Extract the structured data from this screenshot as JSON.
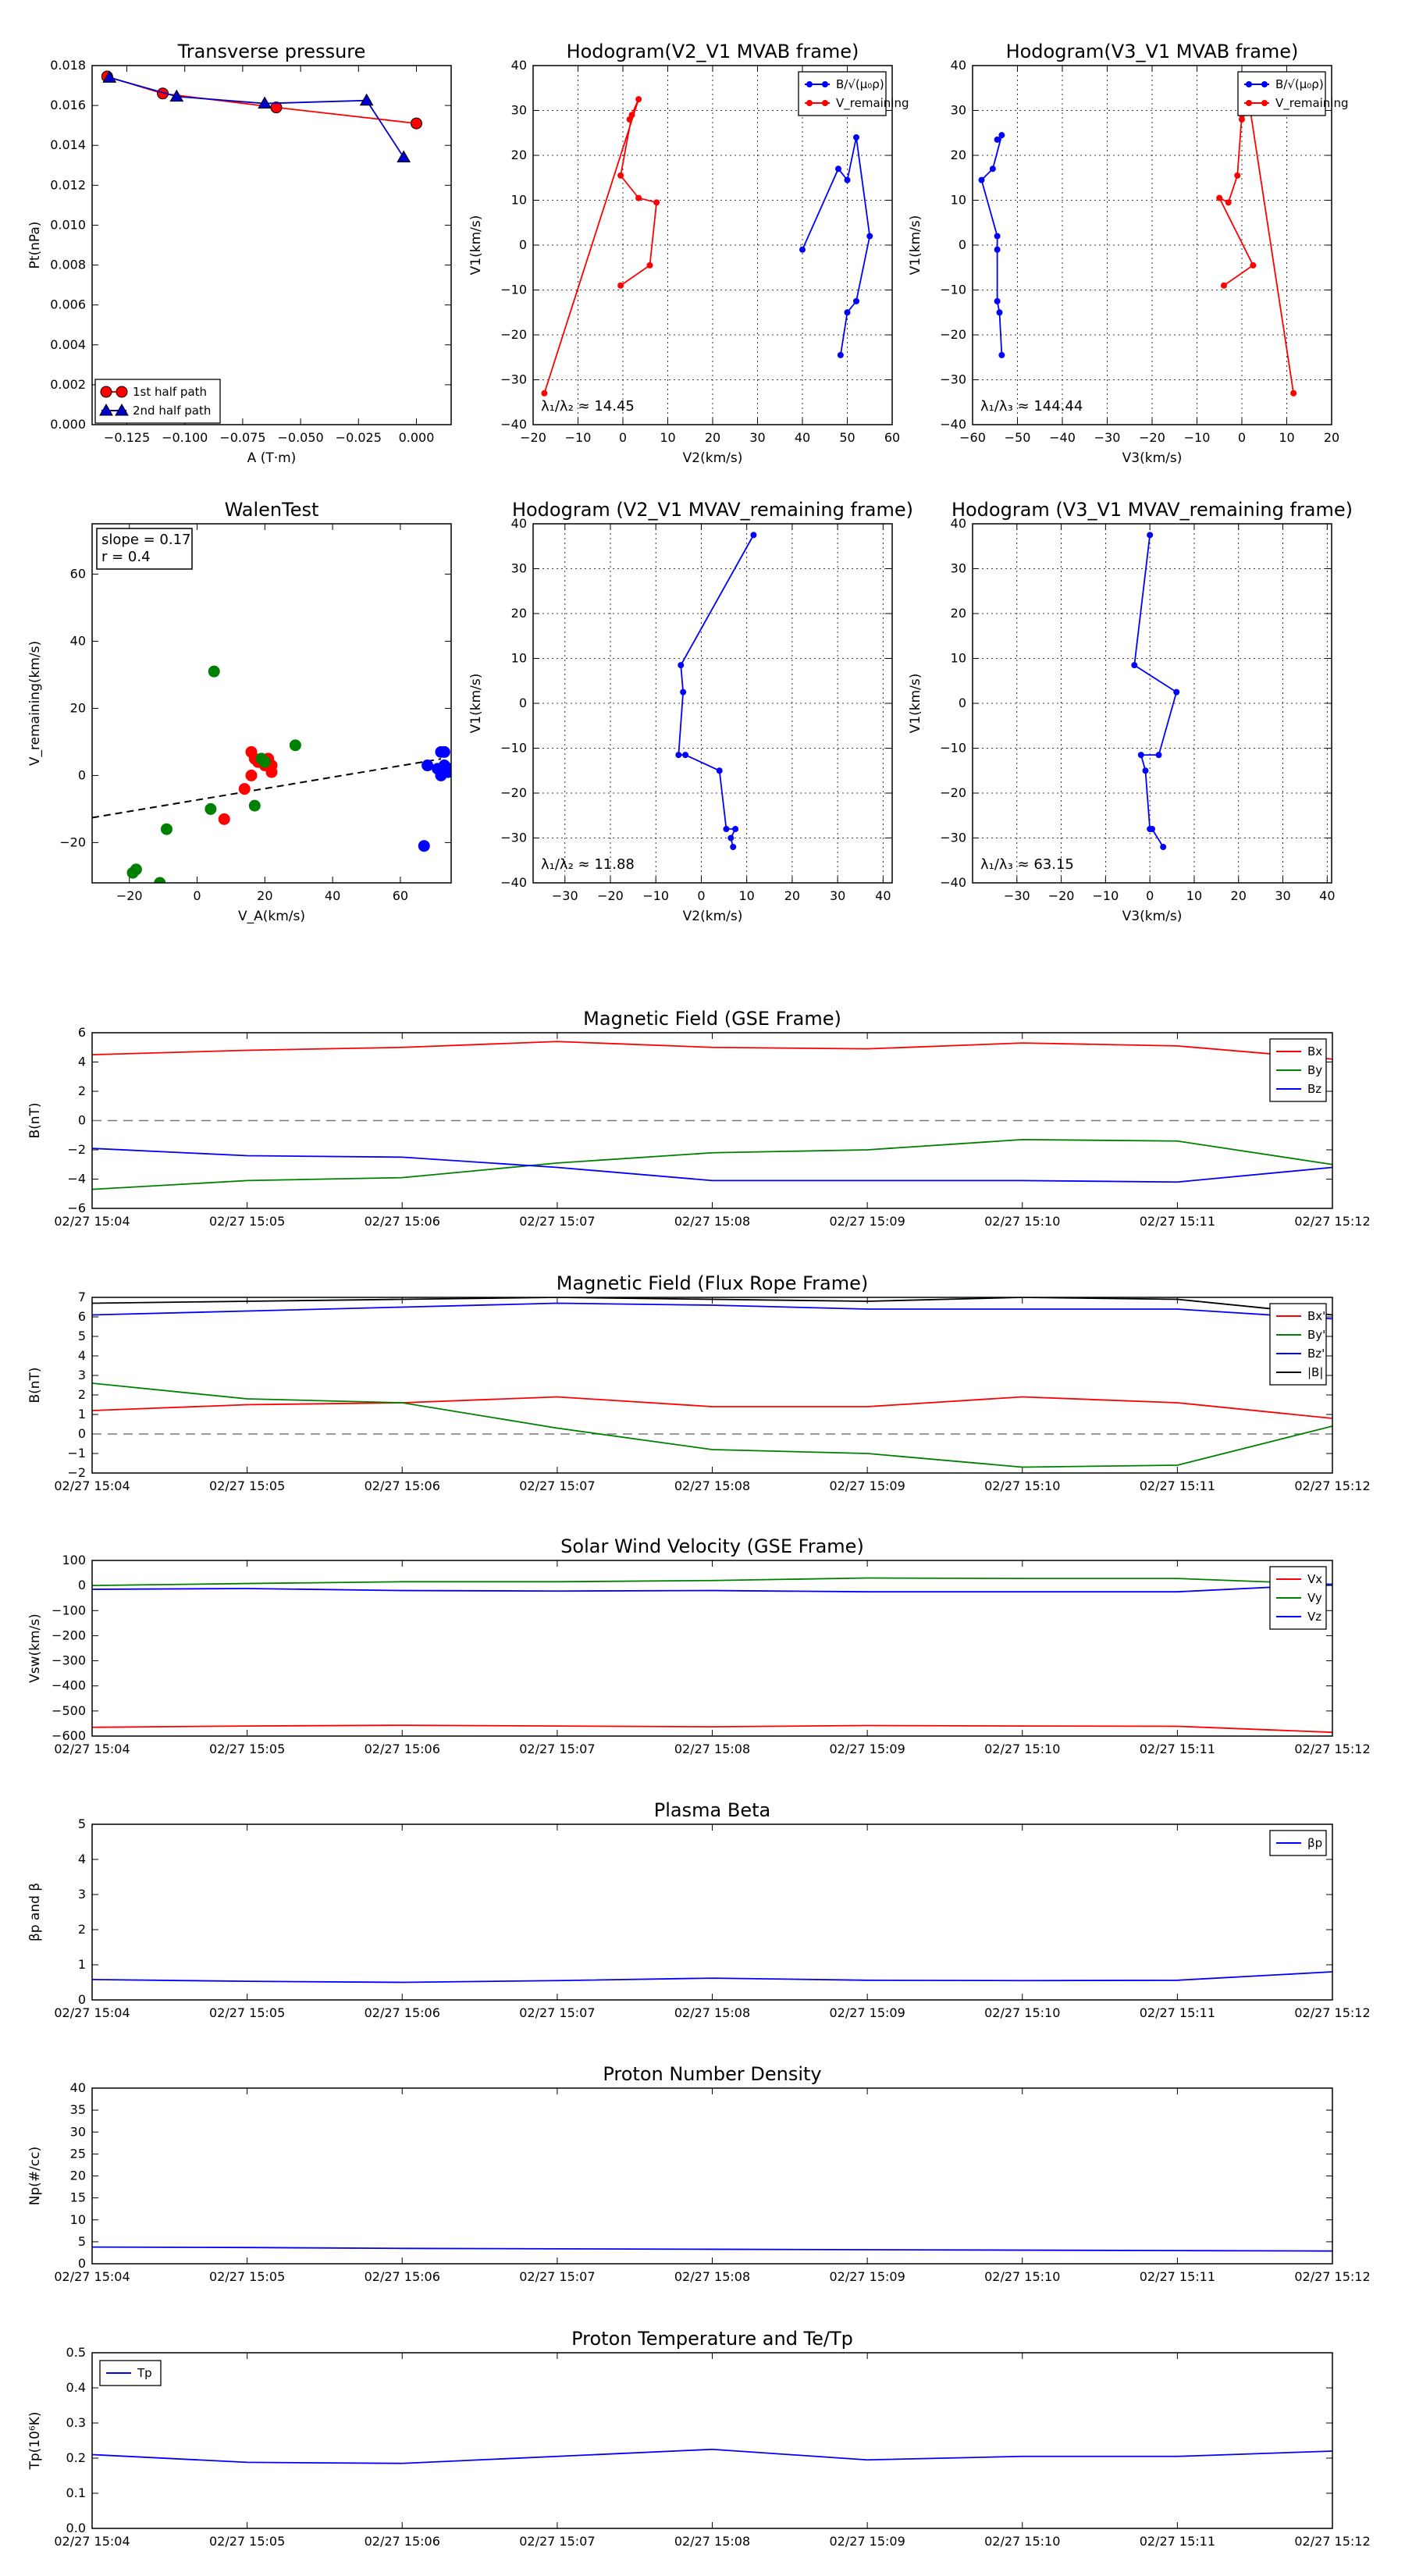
{
  "chart_data": [
    {
      "id": "transverse_pressure",
      "type": "line",
      "title": "Transverse pressure",
      "xlabel": "A (T·m)",
      "ylabel": "Pt(nPa)",
      "xlim": [
        -0.14,
        0.015
      ],
      "ylim": [
        0.0,
        0.018
      ],
      "xticks": [
        -0.125,
        -0.1,
        -0.075,
        -0.05,
        -0.025,
        0.0
      ],
      "xtick_labels": [
        "−0.125",
        "−0.100",
        "−0.075",
        "−0.050",
        "−0.025",
        "0.000"
      ],
      "yticks": [
        0,
        0.002,
        0.004,
        0.006,
        0.008,
        0.01,
        0.012,
        0.014,
        0.016,
        0.018
      ],
      "ytick_labels": [
        "0.000",
        "0.002",
        "0.004",
        "0.006",
        "0.008",
        "0.010",
        "0.012",
        "0.014",
        "0.016",
        "0.018"
      ],
      "legend": "lower-left",
      "grid": false,
      "series": [
        {
          "name": "1st half path",
          "color": "#ff0000",
          "marker": "circle",
          "x": [
            -0.1335,
            -0.1095,
            -0.0605,
            0.0
          ],
          "y": [
            0.01745,
            0.0166,
            0.0159,
            0.0151
          ]
        },
        {
          "name": "2nd half path",
          "color": "#0000cc",
          "marker": "triangle",
          "x": [
            -0.1325,
            -0.1035,
            -0.0655,
            -0.0215,
            -0.0055
          ],
          "y": [
            0.0174,
            0.01645,
            0.0161,
            0.01625,
            0.0134
          ]
        }
      ]
    },
    {
      "id": "hodogram_v2v1_mvab",
      "type": "line",
      "title": "Hodogram(V2_V1 MVAB frame)",
      "xlabel": "V2(km/s)",
      "ylabel": "V1(km/s)",
      "xlim": [
        -20,
        60
      ],
      "ylim": [
        -40,
        40
      ],
      "xticks": [
        -20,
        -10,
        0,
        10,
        20,
        30,
        40,
        50,
        60
      ],
      "xtick_labels": [
        "−20",
        "−10",
        "0",
        "10",
        "20",
        "30",
        "40",
        "50",
        "60"
      ],
      "yticks": [
        -40,
        -30,
        -20,
        -10,
        0,
        10,
        20,
        30,
        40
      ],
      "ytick_labels": [
        "−40",
        "−30",
        "−20",
        "−10",
        "0",
        "10",
        "20",
        "30",
        "40"
      ],
      "grid": true,
      "legend": "top-right",
      "annotation": "λ₁/λ₂ ≈ 14.45",
      "series": [
        {
          "name": "B/√(μ₀ρ)",
          "color": "#0000ff",
          "marker": "dot",
          "x": [
            40,
            48,
            50,
            52,
            55,
            52,
            50,
            48.5
          ],
          "y": [
            -1,
            17,
            14.5,
            24,
            2,
            -12.5,
            -15,
            -24.5
          ]
        },
        {
          "name": "V_remaining",
          "color": "#ff0000",
          "marker": "dot",
          "x": [
            -17.5,
            3.5,
            1.5,
            2,
            -0.5,
            3.5,
            7.5,
            6,
            -0.5
          ],
          "y": [
            -33,
            32.5,
            28,
            29,
            15.5,
            10.5,
            9.5,
            -4.5,
            -9
          ]
        }
      ]
    },
    {
      "id": "hodogram_v3v1_mvab",
      "type": "line",
      "title": "Hodogram(V3_V1 MVAB frame)",
      "xlabel": "V3(km/s)",
      "ylabel": "V1(km/s)",
      "xlim": [
        -60,
        20
      ],
      "ylim": [
        -40,
        40
      ],
      "xticks": [
        -60,
        -50,
        -40,
        -30,
        -20,
        -10,
        0,
        10,
        20
      ],
      "xtick_labels": [
        "−60",
        "−50",
        "−40",
        "−30",
        "−20",
        "−10",
        "0",
        "10",
        "20"
      ],
      "yticks": [
        -40,
        -30,
        -20,
        -10,
        0,
        10,
        20,
        30,
        40
      ],
      "ytick_labels": [
        "−40",
        "−30",
        "−20",
        "−10",
        "0",
        "10",
        "20",
        "30",
        "40"
      ],
      "grid": true,
      "legend": "top-right",
      "annotation": "λ₁/λ₃ ≈ 144.44",
      "series": [
        {
          "name": "B/√(μ₀ρ)",
          "color": "#0000ff",
          "marker": "dot",
          "x": [
            -54.5,
            -53.5,
            -55.5,
            -58,
            -54.5,
            -54.5,
            -54.5,
            -54,
            -53.5
          ],
          "y": [
            23.5,
            24.5,
            17,
            14.5,
            2,
            -1,
            -12.5,
            -15,
            -24.5
          ]
        },
        {
          "name": "V_remaining",
          "color": "#ff0000",
          "marker": "dot",
          "x": [
            11.5,
            1.5,
            0,
            0,
            -1,
            -3,
            -5,
            2.5,
            -4
          ],
          "y": [
            -33,
            32.5,
            28,
            29,
            15.5,
            9.5,
            10.5,
            -4.5,
            -9
          ]
        }
      ]
    },
    {
      "id": "walen_test",
      "type": "scatter",
      "title": "WalenTest",
      "xlabel": "V_A(km/s)",
      "ylabel": "V_remaining(km/s)",
      "xlim": [
        -31,
        75
      ],
      "ylim": [
        -32,
        75
      ],
      "xticks": [
        -20,
        0,
        20,
        40,
        60
      ],
      "xtick_labels": [
        "−20",
        "0",
        "20",
        "40",
        "60"
      ],
      "yticks": [
        -20,
        0,
        20,
        40,
        60
      ],
      "ytick_labels": [
        "−20",
        "0",
        "20",
        "40",
        "60"
      ],
      "grid": false,
      "annotation_lines": [
        "slope = 0.17",
        "r = 0.4"
      ],
      "fit_line": {
        "slope": 0.17,
        "intercept": -7.3,
        "x_range": [
          -31,
          72
        ]
      },
      "series": [
        {
          "color": "#ff0000",
          "x": [
            16,
            17,
            18,
            20,
            21,
            22,
            16,
            8,
            14,
            22
          ],
          "y": [
            7,
            5,
            4,
            3,
            5,
            3,
            0,
            -13,
            -4,
            1
          ]
        },
        {
          "color": "#008000",
          "x": [
            5,
            19,
            20,
            29,
            17,
            -9,
            4,
            -18,
            -19,
            -11
          ],
          "y": [
            31,
            5,
            4,
            9,
            -9,
            -16,
            -10,
            -28,
            -29,
            -32
          ]
        },
        {
          "color": "#0000ff",
          "x": [
            72,
            73,
            68,
            71,
            74,
            72,
            73,
            67,
            75
          ],
          "y": [
            7,
            7,
            3,
            2,
            1,
            0,
            3,
            -21,
            2
          ]
        }
      ]
    },
    {
      "id": "hodogram_v2v1_mvav",
      "type": "line",
      "title": "Hodogram (V2_V1 MVAV_remaining frame)",
      "xlabel": "V2(km/s)",
      "ylabel": "V1(km/s)",
      "xlim": [
        -37,
        42
      ],
      "ylim": [
        -40,
        40
      ],
      "xticks": [
        -30,
        -20,
        -10,
        0,
        10,
        20,
        30,
        40
      ],
      "xtick_labels": [
        "−30",
        "−20",
        "−10",
        "0",
        "10",
        "20",
        "30",
        "40"
      ],
      "yticks": [
        -40,
        -30,
        -20,
        -10,
        0,
        10,
        20,
        30,
        40
      ],
      "ytick_labels": [
        "−40",
        "−30",
        "−20",
        "−10",
        "0",
        "10",
        "20",
        "30",
        "40"
      ],
      "grid": true,
      "annotation": "λ₁/λ₂ ≈ 11.88",
      "series": [
        {
          "color": "#0000ff",
          "marker": "dot",
          "x": [
            11.5,
            -4.5,
            -4,
            -5,
            -3.5,
            4,
            5.5,
            7.5,
            6.5,
            7
          ],
          "y": [
            37.5,
            8.5,
            2.5,
            -11.5,
            -11.5,
            -15,
            -28,
            -28,
            -30,
            -32
          ]
        }
      ]
    },
    {
      "id": "hodogram_v3v1_mvav",
      "type": "line",
      "title": "Hodogram (V3_V1 MVAV_remaining frame)",
      "xlabel": "V3(km/s)",
      "ylabel": "V1(km/s)",
      "xlim": [
        -40,
        41
      ],
      "ylim": [
        -40,
        40
      ],
      "xticks": [
        -30,
        -20,
        -10,
        0,
        10,
        20,
        30,
        40
      ],
      "xtick_labels": [
        "−30",
        "−20",
        "−10",
        "0",
        "10",
        "20",
        "30",
        "40"
      ],
      "yticks": [
        -40,
        -30,
        -20,
        -10,
        0,
        10,
        20,
        30,
        40
      ],
      "ytick_labels": [
        "−40",
        "−30",
        "−20",
        "−10",
        "0",
        "10",
        "20",
        "30",
        "40"
      ],
      "grid": true,
      "annotation": "λ₁/λ₃ ≈ 63.15",
      "series": [
        {
          "color": "#0000ff",
          "marker": "dot",
          "x": [
            0,
            -3.5,
            6,
            2,
            -2,
            -1,
            0,
            0.5,
            3
          ],
          "y": [
            37.5,
            8.5,
            2.5,
            -11.5,
            -11.5,
            -15,
            -28,
            -28,
            -32
          ]
        }
      ]
    },
    {
      "id": "magnetic_field_gse",
      "type": "line",
      "title": "Magnetic Field (GSE Frame)",
      "ylabel": "B(nT)",
      "x": [
        "02/27 15:04",
        "02/27 15:05",
        "02/27 15:06",
        "02/27 15:07",
        "02/27 15:08",
        "02/27 15:09",
        "02/27 15:10",
        "02/27 15:11",
        "02/27 15:12"
      ],
      "ylim": [
        -6,
        6
      ],
      "yticks": [
        -6,
        -4,
        -2,
        0,
        2,
        4,
        6
      ],
      "ytick_labels": [
        "−6",
        "−4",
        "−2",
        "0",
        "2",
        "4",
        "6"
      ],
      "zero_line": true,
      "legend": "top-right",
      "series": [
        {
          "name": "Bx",
          "color": "#ff0000",
          "values": [
            4.5,
            4.8,
            5.0,
            5.4,
            5.0,
            4.9,
            5.3,
            5.1,
            4.2
          ]
        },
        {
          "name": "By",
          "color": "#008000",
          "values": [
            -4.7,
            -4.1,
            -3.9,
            -2.9,
            -2.2,
            -2.0,
            -1.3,
            -1.4,
            -3.0
          ]
        },
        {
          "name": "Bz",
          "color": "#0000ff",
          "values": [
            -1.9,
            -2.4,
            -2.5,
            -3.2,
            -4.1,
            -4.1,
            -4.1,
            -4.2,
            -3.2
          ]
        }
      ]
    },
    {
      "id": "magnetic_field_fluxrope",
      "type": "line",
      "title": "Magnetic Field (Flux Rope Frame)",
      "ylabel": "B(nT)",
      "x": [
        "02/27 15:04",
        "02/27 15:05",
        "02/27 15:06",
        "02/27 15:07",
        "02/27 15:08",
        "02/27 15:09",
        "02/27 15:10",
        "02/27 15:11",
        "02/27 15:12"
      ],
      "ylim": [
        -2,
        7
      ],
      "yticks": [
        -2,
        -1,
        0,
        1,
        2,
        3,
        4,
        5,
        6,
        7
      ],
      "ytick_labels": [
        "−2",
        "−1",
        "0",
        "1",
        "2",
        "3",
        "4",
        "5",
        "6",
        "7"
      ],
      "zero_line": true,
      "legend": "top-right",
      "series": [
        {
          "name": "Bx'",
          "color": "#ff0000",
          "values": [
            1.2,
            1.5,
            1.6,
            1.9,
            1.4,
            1.4,
            1.9,
            1.6,
            0.8
          ]
        },
        {
          "name": "By'",
          "color": "#008000",
          "values": [
            2.6,
            1.8,
            1.6,
            0.3,
            -0.8,
            -1.0,
            -1.7,
            -1.6,
            0.4
          ]
        },
        {
          "name": "Bz'",
          "color": "#0000ff",
          "values": [
            6.1,
            6.3,
            6.5,
            6.7,
            6.6,
            6.4,
            6.4,
            6.4,
            5.9
          ]
        },
        {
          "name": "|B|",
          "color": "#000000",
          "values": [
            6.7,
            6.8,
            6.9,
            7.0,
            6.9,
            6.8,
            7.0,
            6.9,
            6.1
          ]
        }
      ]
    },
    {
      "id": "solar_wind_velocity",
      "type": "line",
      "title": "Solar Wind Velocity (GSE Frame)",
      "ylabel": "Vsw(km/s)",
      "x": [
        "02/27 15:04",
        "02/27 15:05",
        "02/27 15:06",
        "02/27 15:07",
        "02/27 15:08",
        "02/27 15:09",
        "02/27 15:10",
        "02/27 15:11",
        "02/27 15:12"
      ],
      "ylim": [
        -600,
        100
      ],
      "yticks": [
        -600,
        -500,
        -400,
        -300,
        -200,
        -100,
        0,
        100
      ],
      "ytick_labels": [
        "−600",
        "−500",
        "−400",
        "−300",
        "−200",
        "−100",
        "0",
        "100"
      ],
      "legend": "top-right",
      "series": [
        {
          "name": "Vx",
          "color": "#ff0000",
          "values": [
            -565,
            -560,
            -557,
            -560,
            -563,
            -558,
            -560,
            -561,
            -585
          ]
        },
        {
          "name": "Vy",
          "color": "#008000",
          "values": [
            0,
            8,
            15,
            15,
            20,
            30,
            28,
            28,
            5
          ]
        },
        {
          "name": "Vz",
          "color": "#0000ff",
          "values": [
            -15,
            -12,
            -20,
            -22,
            -20,
            -25,
            -25,
            -25,
            5
          ]
        }
      ]
    },
    {
      "id": "plasma_beta",
      "type": "line",
      "title": "Plasma Beta",
      "ylabel": "βp and β",
      "x": [
        "02/27 15:04",
        "02/27 15:05",
        "02/27 15:06",
        "02/27 15:07",
        "02/27 15:08",
        "02/27 15:09",
        "02/27 15:10",
        "02/27 15:11",
        "02/27 15:12"
      ],
      "ylim": [
        0,
        5
      ],
      "yticks": [
        0,
        1,
        2,
        3,
        4,
        5
      ],
      "ytick_labels": [
        "0",
        "1",
        "2",
        "3",
        "4",
        "5"
      ],
      "legend": "top-right",
      "series": [
        {
          "name": "βp",
          "color": "#0000ff",
          "values": [
            0.58,
            0.53,
            0.5,
            0.55,
            0.62,
            0.56,
            0.55,
            0.56,
            0.8
          ]
        }
      ]
    },
    {
      "id": "proton_density",
      "type": "line",
      "title": "Proton Number Density",
      "ylabel": "Np(#/cc)",
      "x": [
        "02/27 15:04",
        "02/27 15:05",
        "02/27 15:06",
        "02/27 15:07",
        "02/27 15:08",
        "02/27 15:09",
        "02/27 15:10",
        "02/27 15:11",
        "02/27 15:12"
      ],
      "ylim": [
        0,
        40
      ],
      "yticks": [
        0,
        5,
        10,
        15,
        20,
        25,
        30,
        35,
        40
      ],
      "ytick_labels": [
        "0",
        "5",
        "10",
        "15",
        "20",
        "25",
        "30",
        "35",
        "40"
      ],
      "series": [
        {
          "color": "#0000ff",
          "values": [
            3.8,
            3.7,
            3.5,
            3.4,
            3.3,
            3.2,
            3.1,
            3.0,
            2.9
          ]
        }
      ]
    },
    {
      "id": "proton_temperature",
      "type": "line",
      "title": "Proton Temperature and Te/Tp",
      "ylabel": "Tp(10⁶K)",
      "x": [
        "02/27 15:04",
        "02/27 15:05",
        "02/27 15:06",
        "02/27 15:07",
        "02/27 15:08",
        "02/27 15:09",
        "02/27 15:10",
        "02/27 15:11",
        "02/27 15:12"
      ],
      "ylim": [
        0,
        0.5
      ],
      "yticks": [
        0,
        0.1,
        0.2,
        0.3,
        0.4,
        0.5
      ],
      "ytick_labels": [
        "0.0",
        "0.1",
        "0.2",
        "0.3",
        "0.4",
        "0.5"
      ],
      "legend": "top-left",
      "series": [
        {
          "name": "Tp",
          "color": "#0000ff",
          "values": [
            0.21,
            0.188,
            0.185,
            0.205,
            0.225,
            0.195,
            0.205,
            0.205,
            0.22
          ]
        }
      ]
    }
  ]
}
